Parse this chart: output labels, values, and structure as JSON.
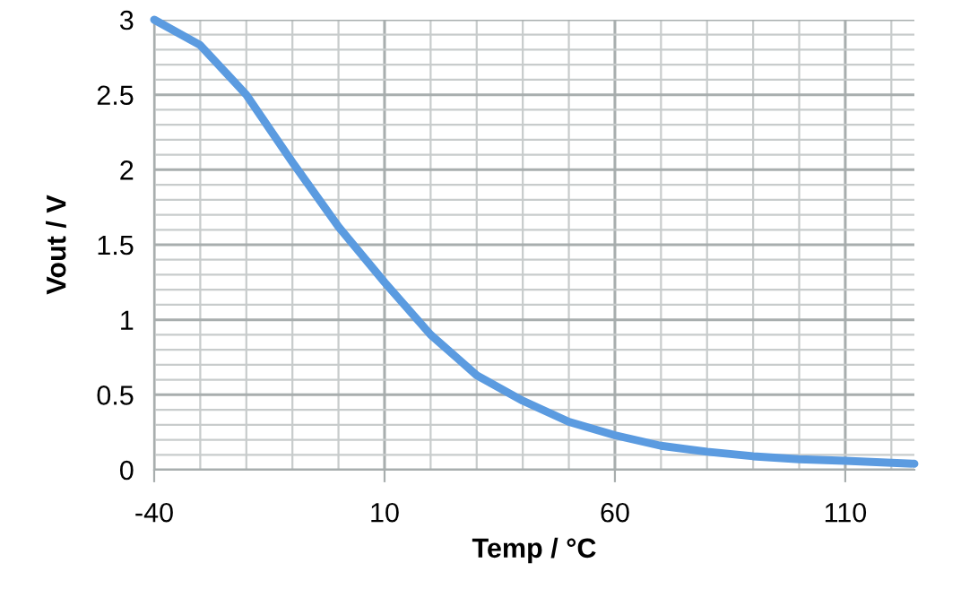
{
  "chart_data": {
    "type": "line",
    "xlabel": "Temp / °C",
    "ylabel": "Vout / V",
    "x": [
      -40,
      -30,
      -20,
      -10,
      0,
      10,
      20,
      30,
      40,
      50,
      60,
      70,
      80,
      90,
      100,
      110,
      125
    ],
    "series": [
      {
        "color": "#5b9be0",
        "values": [
          3.0,
          2.83,
          2.5,
          2.05,
          1.62,
          1.25,
          0.9,
          0.63,
          0.46,
          0.32,
          0.23,
          0.16,
          0.12,
          0.09,
          0.07,
          0.06,
          0.04
        ]
      }
    ],
    "xlim": [
      -40,
      125
    ],
    "xticks": [
      -40,
      10,
      60,
      110
    ],
    "ylim": [
      0,
      3
    ],
    "yticks": [
      0,
      0.5,
      1,
      1.5,
      2,
      2.5,
      3
    ],
    "grid": true,
    "line_style": "solid",
    "marker": "none"
  }
}
